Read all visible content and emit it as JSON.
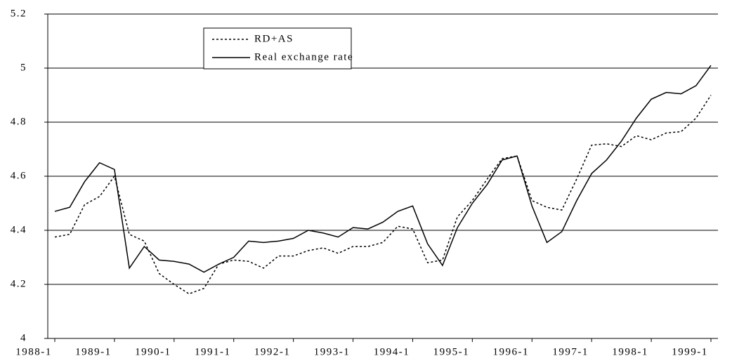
{
  "chart_data": {
    "type": "line",
    "categories": [
      "1988-1",
      null,
      null,
      null,
      "1989-1",
      null,
      null,
      null,
      "1990-1",
      null,
      null,
      null,
      "1991-1",
      null,
      null,
      null,
      "1992-1",
      null,
      null,
      null,
      "1993-1",
      null,
      null,
      null,
      "1994-1",
      null,
      null,
      null,
      "1995-1",
      null,
      null,
      null,
      "1996-1",
      null,
      null,
      null,
      "1997-1",
      null,
      null,
      null,
      "1998-1",
      null,
      null,
      null,
      "1999-1"
    ],
    "series": [
      {
        "name": "RD+AS",
        "color": "#000000",
        "dash": "dotted",
        "values": [
          4.375,
          4.385,
          4.495,
          4.525,
          4.6,
          4.385,
          4.36,
          4.24,
          4.2,
          4.165,
          4.185,
          4.275,
          4.29,
          4.285,
          4.26,
          4.305,
          4.305,
          4.325,
          4.335,
          4.315,
          4.34,
          4.34,
          4.355,
          4.415,
          4.405,
          4.28,
          4.29,
          4.45,
          4.51,
          4.59,
          4.665,
          4.675,
          4.51,
          4.485,
          4.475,
          4.59,
          4.715,
          4.72,
          4.71,
          4.75,
          4.735,
          4.76,
          4.765,
          4.815,
          4.9
        ]
      },
      {
        "name": "Real exchange rate",
        "color": "#000000",
        "dash": "solid",
        "values": [
          4.47,
          4.485,
          4.58,
          4.65,
          4.625,
          4.26,
          4.34,
          4.29,
          4.285,
          4.275,
          4.245,
          4.275,
          4.3,
          4.36,
          4.355,
          4.36,
          4.37,
          4.4,
          4.39,
          4.375,
          4.41,
          4.405,
          4.43,
          4.47,
          4.49,
          4.35,
          4.27,
          4.41,
          4.5,
          4.57,
          4.66,
          4.675,
          4.49,
          4.355,
          4.395,
          4.51,
          4.61,
          4.66,
          4.73,
          4.815,
          4.885,
          4.91,
          4.905,
          4.935,
          5.01
        ]
      }
    ],
    "ylim": [
      4,
      5.2
    ],
    "yticks": [
      4,
      4.2,
      4.4,
      4.6,
      4.8,
      5,
      5.2
    ],
    "grid": true,
    "legend": "upper-left"
  }
}
